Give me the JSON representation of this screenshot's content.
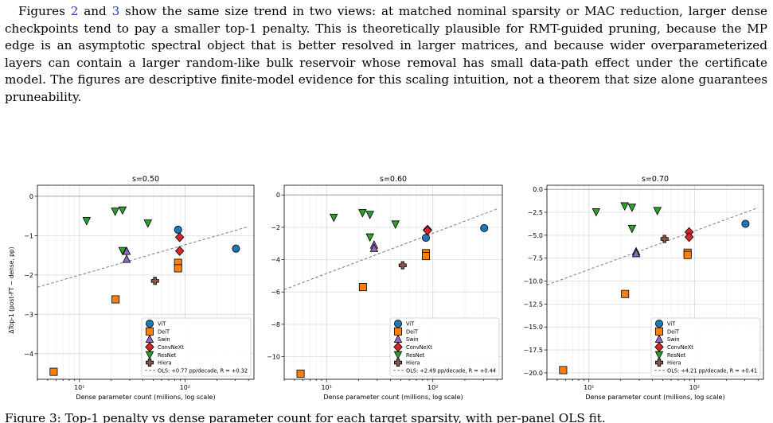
{
  "paragraph": {
    "pre": "Figures ",
    "ref1": "2",
    "and": " and ",
    "ref2": "3",
    "body": " show the same size trend in two views: at matched nominal sparsity or MAC reduction, larger dense checkpoints tend to pay a smaller top-1 penalty. This is theoretically plausible for RMT-guided pruning, because the MP edge is an asymptotic spectral object that is better resolved in larger matrices, and because wider overparameterized layers can contain a larger random-like bulk reservoir whose removal has small data-path effect under the certificate model. The figures are descriptive finite-model evidence for this scaling intuition, not a theorem that size alone guarantees pruneability."
  },
  "colors": {
    "ViT": "#1f77b4",
    "DeiT": "#ff7f0e",
    "Swin": "#9467bd",
    "ConvNeXt": "#d62728",
    "ResNet": "#2ca02c",
    "Hiera": "#8c564b",
    "ols": "#7f7f7f"
  },
  "chart_data": [
    {
      "type": "scatter",
      "title": "s=0.50",
      "xlabel": "Dense parameter count (millions, log scale)",
      "ylabel": "ΔTop-1 (post-FT − dense, pp)",
      "xscale": "log",
      "xlim": [
        4,
        450
      ],
      "ylim": [
        -4.65,
        0.28
      ],
      "yticks": [
        "0",
        "−1",
        "−2",
        "−3",
        "−4"
      ],
      "ytick_values": [
        0,
        -1,
        -2,
        -3,
        -4
      ],
      "xticks": [
        "10¹",
        "10²"
      ],
      "xtick_values": [
        10,
        100
      ],
      "grid": true,
      "legend_position": "lower-right",
      "series": [
        {
          "name": "ViT",
          "marker": "circle",
          "points": [
            [
              86,
              -0.85
            ],
            [
              304,
              -1.33
            ]
          ]
        },
        {
          "name": "DeiT",
          "marker": "square",
          "points": [
            [
              5.7,
              -4.46
            ],
            [
              22,
              -2.62
            ],
            [
              86,
              -1.69
            ],
            [
              86,
              -1.83
            ]
          ]
        },
        {
          "name": "Swin",
          "marker": "triangle-up",
          "points": [
            [
              28,
              -1.4
            ],
            [
              28,
              -1.6
            ]
          ]
        },
        {
          "name": "ConvNeXt",
          "marker": "diamond",
          "points": [
            [
              89,
              -1.04
            ],
            [
              89,
              -1.39
            ]
          ]
        },
        {
          "name": "ResNet",
          "marker": "triangle-down",
          "points": [
            [
              11.7,
              -0.62
            ],
            [
              21.8,
              -0.38
            ],
            [
              25.6,
              -0.35
            ],
            [
              25.6,
              -1.38
            ],
            [
              44.5,
              -0.68
            ]
          ]
        },
        {
          "name": "Hiera",
          "marker": "plus",
          "points": [
            [
              52,
              -2.15
            ]
          ]
        }
      ],
      "ols": {
        "label": "OLS: +0.77 pp/decade, R = +0.32",
        "x": [
          4,
          400
        ],
        "y": [
          -2.31,
          -0.77
        ]
      }
    },
    {
      "type": "scatter",
      "title": "s=0.60",
      "xlabel": "Dense parameter count (millions, log scale)",
      "ylabel": "",
      "xscale": "log",
      "xlim": [
        4,
        450
      ],
      "ylim": [
        -11.4,
        0.6
      ],
      "yticks": [
        "0",
        "−2",
        "−4",
        "−6",
        "−8",
        "−10"
      ],
      "ytick_values": [
        0,
        -2,
        -4,
        -6,
        -8,
        -10
      ],
      "xticks": [
        "10¹",
        "10²"
      ],
      "xtick_values": [
        10,
        100
      ],
      "grid": true,
      "legend_position": "lower-right",
      "series": [
        {
          "name": "ViT",
          "marker": "circle",
          "points": [
            [
              86,
              -2.65
            ],
            [
              304,
              -2.05
            ]
          ]
        },
        {
          "name": "DeiT",
          "marker": "square",
          "points": [
            [
              5.7,
              -11.05
            ],
            [
              22,
              -5.7
            ],
            [
              86,
              -3.6
            ],
            [
              86,
              -3.78
            ]
          ]
        },
        {
          "name": "Swin",
          "marker": "triangle-up",
          "points": [
            [
              28,
              -3.1
            ],
            [
              28,
              -3.3
            ]
          ]
        },
        {
          "name": "ConvNeXt",
          "marker": "diamond",
          "points": [
            [
              89,
              -2.15
            ],
            [
              89,
              -2.2
            ]
          ]
        },
        {
          "name": "ResNet",
          "marker": "triangle-down",
          "points": [
            [
              11.7,
              -1.38
            ],
            [
              21.8,
              -1.1
            ],
            [
              25.6,
              -1.2
            ],
            [
              25.6,
              -2.6
            ],
            [
              44.5,
              -1.8
            ]
          ]
        },
        {
          "name": "Hiera",
          "marker": "plus",
          "points": [
            [
              52,
              -4.35
            ]
          ]
        }
      ],
      "ols": {
        "label": "OLS: +2.49 pp/decade, R = +0.44",
        "x": [
          4,
          400
        ],
        "y": [
          -5.85,
          -0.87
        ]
      }
    },
    {
      "type": "scatter",
      "title": "s=0.70",
      "xlabel": "Dense parameter count (millions, log scale)",
      "ylabel": "",
      "xscale": "log",
      "xlim": [
        4,
        450
      ],
      "ylim": [
        -20.7,
        0.45
      ],
      "yticks": [
        "0.0",
        "−2.5",
        "−5.0",
        "−7.5",
        "−10.0",
        "−12.5",
        "−15.0",
        "−17.5",
        "−20.0"
      ],
      "ytick_values": [
        0,
        -2.5,
        -5,
        -7.5,
        -10,
        -12.5,
        -15,
        -17.5,
        -20
      ],
      "xticks": [
        "10¹",
        "10²"
      ],
      "xtick_values": [
        10,
        100
      ],
      "grid": true,
      "legend_position": "lower-right",
      "series": [
        {
          "name": "ViT",
          "marker": "circle",
          "points": [
            [
              304,
              -3.75
            ]
          ]
        },
        {
          "name": "DeiT",
          "marker": "square",
          "points": [
            [
              5.7,
              -19.7
            ],
            [
              22,
              -11.4
            ],
            [
              86,
              -6.9
            ],
            [
              86,
              -7.15
            ]
          ]
        },
        {
          "name": "Swin",
          "marker": "triangle-up",
          "points": [
            [
              28,
              -6.8
            ],
            [
              28,
              -7.0
            ]
          ]
        },
        {
          "name": "ConvNeXt",
          "marker": "diamond",
          "points": [
            [
              89,
              -4.65
            ],
            [
              89,
              -5.2
            ]
          ]
        },
        {
          "name": "ResNet",
          "marker": "triangle-down",
          "points": [
            [
              11.7,
              -2.45
            ],
            [
              21.8,
              -1.8
            ],
            [
              25.6,
              -1.95
            ],
            [
              25.6,
              -4.25
            ],
            [
              44.5,
              -2.3
            ]
          ]
        },
        {
          "name": "Hiera",
          "marker": "plus",
          "points": [
            [
              52,
              -5.4
            ]
          ]
        }
      ],
      "ols": {
        "label": "OLS: +4.21 pp/decade, R = +0.41",
        "x": [
          4,
          400
        ],
        "y": [
          -10.42,
          -2.0
        ]
      }
    }
  ],
  "caption": {
    "text": "Figure 3: Top-1 penalty vs dense parameter count for each target sparsity, with per-panel OLS fit."
  }
}
